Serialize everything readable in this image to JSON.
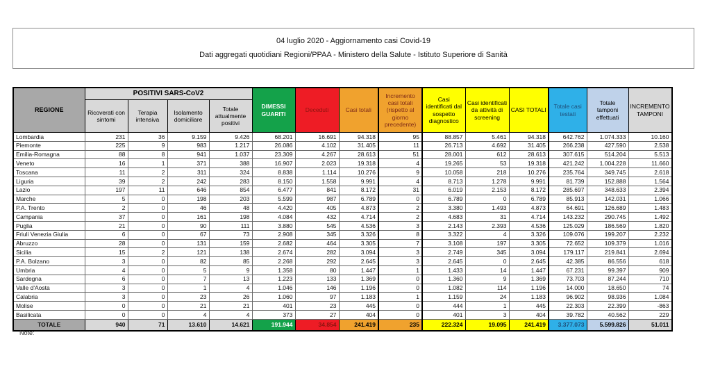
{
  "title": {
    "line1": "04 luglio 2020 - Aggiornamento casi Covid-19",
    "line2": "Dati aggregati quotidiani Regioni/PPAA - Ministero della Salute - Istituto Superiore di Sanità"
  },
  "note_label": "Note:",
  "colors": {
    "green": "#14a24a",
    "red": "#ee1c25",
    "orange": "#f0a22e",
    "yellow": "#ffff00",
    "cyan": "#2fb0e8",
    "light_blue": "#bfd2ea",
    "header_gray": "#a8a8a8",
    "subheader_gray": "#d9d9d9"
  },
  "table": {
    "group_header": "POSITIVI SARS-CoV2",
    "columns": [
      {
        "key": "regione",
        "label": "REGIONE"
      },
      {
        "key": "ricoverati-con-sintomi",
        "label": "Ricoverati con sintomi"
      },
      {
        "key": "terapia-intensiva",
        "label": "Terapia intensiva"
      },
      {
        "key": "isolamento-domiciliare",
        "label": "Isolamento domiciliare"
      },
      {
        "key": "totale-attualmente-positivi",
        "label": "Totale attualmente positivi"
      },
      {
        "key": "dimessi-guariti",
        "label": "DIMESSI GUARITI"
      },
      {
        "key": "deceduti",
        "label": "Deceduti"
      },
      {
        "key": "casi-totali",
        "label": "Casi totali"
      },
      {
        "key": "incremento-casi-totali",
        "label": "Incremento casi totali (rispetto al giorno precedente)"
      },
      {
        "key": "casi-sospetto-diagnostico",
        "label": "Casi identificati dal sospetto diagnostico"
      },
      {
        "key": "casi-attivita-screening",
        "label": "Casi identificati da attività di screening"
      },
      {
        "key": "casi-totali-2",
        "label": "CASI TOTALI"
      },
      {
        "key": "totale-casi-testati",
        "label": "Totale casi testati"
      },
      {
        "key": "totale-tamponi-effettuati",
        "label": "Totale tamponi effettuati"
      },
      {
        "key": "incremento-tamponi",
        "label": "INCREMENTO TAMPONI"
      }
    ],
    "rows": [
      [
        "Lombardia",
        "231",
        "36",
        "9.159",
        "9.426",
        "68.201",
        "16.691",
        "94.318",
        "95",
        "88.857",
        "5.461",
        "94.318",
        "642.762",
        "1.074.333",
        "10.160"
      ],
      [
        "Piemonte",
        "225",
        "9",
        "983",
        "1.217",
        "26.086",
        "4.102",
        "31.405",
        "11",
        "26.713",
        "4.692",
        "31.405",
        "266.238",
        "427.590",
        "2.538"
      ],
      [
        "Emilia-Romagna",
        "88",
        "8",
        "941",
        "1.037",
        "23.309",
        "4.267",
        "28.613",
        "51",
        "28.001",
        "612",
        "28.613",
        "307.615",
        "514.204",
        "5.513"
      ],
      [
        "Veneto",
        "16",
        "1",
        "371",
        "388",
        "16.907",
        "2.023",
        "19.318",
        "4",
        "19.265",
        "53",
        "19.318",
        "421.242",
        "1.004.228",
        "11.660"
      ],
      [
        "Toscana",
        "11",
        "2",
        "311",
        "324",
        "8.838",
        "1.114",
        "10.276",
        "9",
        "10.058",
        "218",
        "10.276",
        "235.764",
        "349.745",
        "2.618"
      ],
      [
        "Liguria",
        "39",
        "2",
        "242",
        "283",
        "8.150",
        "1.558",
        "9.991",
        "4",
        "8.713",
        "1.278",
        "9.991",
        "81.739",
        "152.888",
        "1.564"
      ],
      [
        "Lazio",
        "197",
        "11",
        "646",
        "854",
        "6.477",
        "841",
        "8.172",
        "31",
        "6.019",
        "2.153",
        "8.172",
        "285.697",
        "348.633",
        "2.394"
      ],
      [
        "Marche",
        "5",
        "0",
        "198",
        "203",
        "5.599",
        "987",
        "6.789",
        "0",
        "6.789",
        "0",
        "6.789",
        "85.913",
        "142.031",
        "1.066"
      ],
      [
        "P.A. Trento",
        "2",
        "0",
        "46",
        "48",
        "4.420",
        "405",
        "4.873",
        "2",
        "3.380",
        "1.493",
        "4.873",
        "64.691",
        "126.689",
        "1.483"
      ],
      [
        "Campania",
        "37",
        "0",
        "161",
        "198",
        "4.084",
        "432",
        "4.714",
        "2",
        "4.683",
        "31",
        "4.714",
        "143.232",
        "290.745",
        "1.492"
      ],
      [
        "Puglia",
        "21",
        "0",
        "90",
        "111",
        "3.880",
        "545",
        "4.536",
        "3",
        "2.143",
        "2.393",
        "4.536",
        "125.029",
        "186.569",
        "1.820"
      ],
      [
        "Friuli Venezia Giulia",
        "6",
        "0",
        "67",
        "73",
        "2.908",
        "345",
        "3.326",
        "8",
        "3.322",
        "4",
        "3.326",
        "109.076",
        "199.207",
        "2.232"
      ],
      [
        "Abruzzo",
        "28",
        "0",
        "131",
        "159",
        "2.682",
        "464",
        "3.305",
        "7",
        "3.108",
        "197",
        "3.305",
        "72.652",
        "109.379",
        "1.016"
      ],
      [
        "Sicilia",
        "15",
        "2",
        "121",
        "138",
        "2.674",
        "282",
        "3.094",
        "3",
        "2.749",
        "345",
        "3.094",
        "179.117",
        "219.841",
        "2.694"
      ],
      [
        "P.A. Bolzano",
        "3",
        "0",
        "82",
        "85",
        "2.268",
        "292",
        "2.645",
        "3",
        "2.645",
        "0",
        "2.645",
        "42.385",
        "86.556",
        "618"
      ],
      [
        "Umbria",
        "4",
        "0",
        "5",
        "9",
        "1.358",
        "80",
        "1.447",
        "1",
        "1.433",
        "14",
        "1.447",
        "67.231",
        "99.397",
        "909"
      ],
      [
        "Sardegna",
        "6",
        "0",
        "7",
        "13",
        "1.223",
        "133",
        "1.369",
        "0",
        "1.360",
        "9",
        "1.369",
        "73.703",
        "87.244",
        "710"
      ],
      [
        "Valle d'Aosta",
        "3",
        "0",
        "1",
        "4",
        "1.046",
        "146",
        "1.196",
        "0",
        "1.082",
        "114",
        "1.196",
        "14.000",
        "18.650",
        "74"
      ],
      [
        "Calabria",
        "3",
        "0",
        "23",
        "26",
        "1.060",
        "97",
        "1.183",
        "1",
        "1.159",
        "24",
        "1.183",
        "96.902",
        "98.936",
        "1.084"
      ],
      [
        "Molise",
        "0",
        "0",
        "21",
        "21",
        "401",
        "23",
        "445",
        "0",
        "444",
        "1",
        "445",
        "22.303",
        "22.399",
        "-863"
      ],
      [
        "Basilicata",
        "0",
        "0",
        "4",
        "4",
        "373",
        "27",
        "404",
        "0",
        "401",
        "3",
        "404",
        "39.782",
        "40.562",
        "229"
      ]
    ],
    "totals": [
      "TOTALE",
      "940",
      "71",
      "13.610",
      "14.621",
      "191.944",
      "34.854",
      "241.419",
      "235",
      "222.324",
      "19.095",
      "241.419",
      "3.377.073",
      "5.599.826",
      "51.011"
    ]
  }
}
